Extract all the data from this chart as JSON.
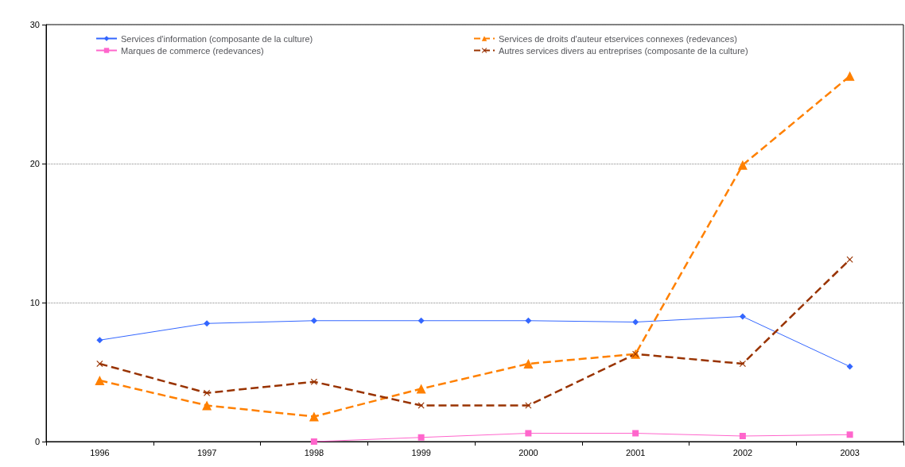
{
  "chart_data": {
    "type": "line",
    "categories": [
      "1996",
      "1997",
      "1998",
      "1999",
      "2000",
      "2001",
      "2002",
      "2003"
    ],
    "ylim": [
      0,
      30
    ],
    "yticks": [
      0,
      10,
      20,
      30
    ],
    "grid": "y",
    "legend": "top",
    "series": [
      {
        "name": "Services d'information (composante de la culture)",
        "color": "#3366ff",
        "marker": "diamond",
        "line_style": "solid",
        "values": [
          7.3,
          8.5,
          8.7,
          8.7,
          8.7,
          8.6,
          9.0,
          5.4
        ]
      },
      {
        "name": "Marques de commerce (redevances)",
        "color": "#ff66cc",
        "marker": "square",
        "line_style": "solid",
        "values": [
          null,
          null,
          0,
          0.3,
          0.6,
          0.6,
          0.4,
          0.5
        ]
      },
      {
        "name": "Services de droits d'auteur etservices connexes (redevances)",
        "color": "#ff8000",
        "marker": "triangle",
        "line_style": "dashed",
        "values": [
          4.4,
          2.6,
          1.8,
          3.8,
          5.6,
          6.3,
          19.9,
          26.3
        ]
      },
      {
        "name": "Autres services divers au entreprises (composante de la culture)",
        "color": "#993300",
        "marker": "cross",
        "line_style": "dashed",
        "values": [
          5.6,
          3.5,
          4.3,
          2.6,
          2.6,
          6.3,
          5.6,
          13.1
        ]
      }
    ]
  }
}
